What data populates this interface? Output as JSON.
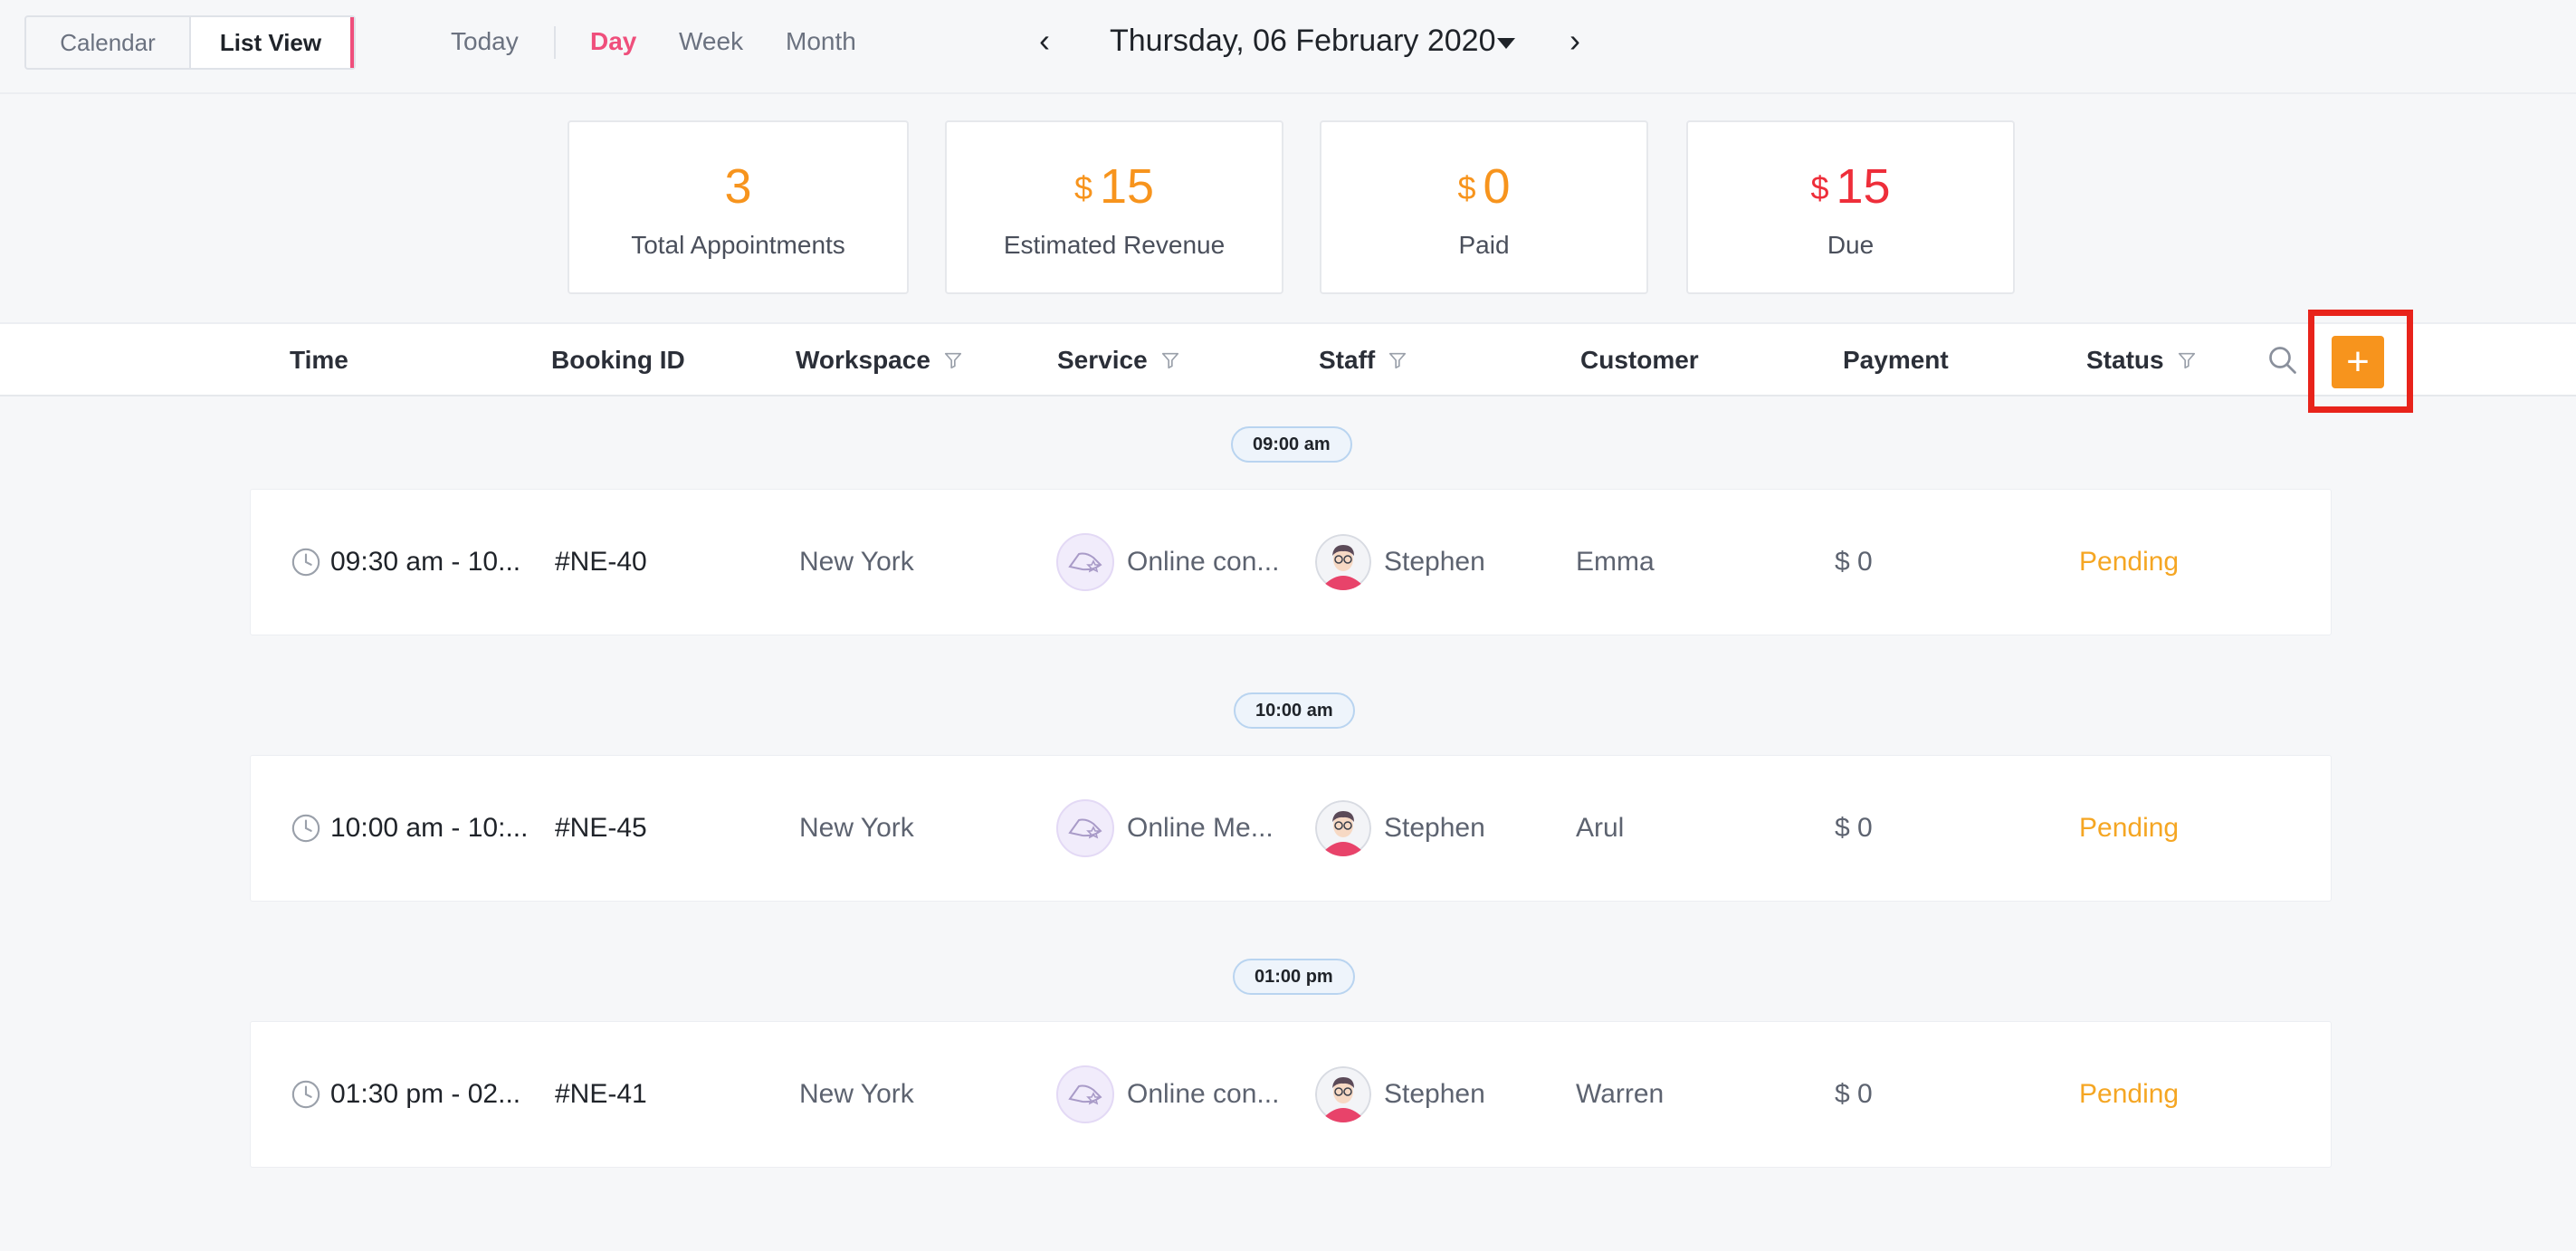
{
  "view_toggle": {
    "calendar": "Calendar",
    "list": "List View"
  },
  "nav": {
    "today": "Today",
    "day": "Day",
    "week": "Week",
    "month": "Month"
  },
  "date": {
    "title": "Thursday, 06 February 2020",
    "prev": "‹",
    "next": "›"
  },
  "stats": [
    {
      "value": "3",
      "currency": "",
      "label": "Total Appointments"
    },
    {
      "value": "15",
      "currency": "$",
      "label": "Estimated Revenue"
    },
    {
      "value": "0",
      "currency": "$",
      "label": "Paid"
    },
    {
      "value": "15",
      "currency": "$",
      "label": "Due"
    }
  ],
  "columns": {
    "time": "Time",
    "booking_id": "Booking ID",
    "workspace": "Workspace",
    "service": "Service",
    "staff": "Staff",
    "customer": "Customer",
    "payment": "Payment",
    "status": "Status"
  },
  "add_label": "+",
  "slots": [
    "09:00 am",
    "10:00 am",
    "01:00 pm"
  ],
  "appointments": [
    {
      "time": "09:30 am - 10...",
      "id": "#NE-40",
      "workspace": "New York",
      "service": "Online con...",
      "staff": "Stephen",
      "customer": "Emma",
      "payment": "$ 0",
      "status": "Pending"
    },
    {
      "time": "10:00 am - 10:...",
      "id": "#NE-45",
      "workspace": "New York",
      "service": "Online Me...",
      "staff": "Stephen",
      "customer": "Arul",
      "payment": "$ 0",
      "status": "Pending"
    },
    {
      "time": "01:30 pm - 02...",
      "id": "#NE-41",
      "workspace": "New York",
      "service": "Online con...",
      "staff": "Stephen",
      "customer": "Warren",
      "payment": "$ 0",
      "status": "Pending"
    }
  ],
  "colors": {
    "accent": "#f7941d",
    "pink": "#ef4f7c",
    "due": "#ee2e3a",
    "pending": "#f5a623",
    "highlight": "#e8231b"
  }
}
